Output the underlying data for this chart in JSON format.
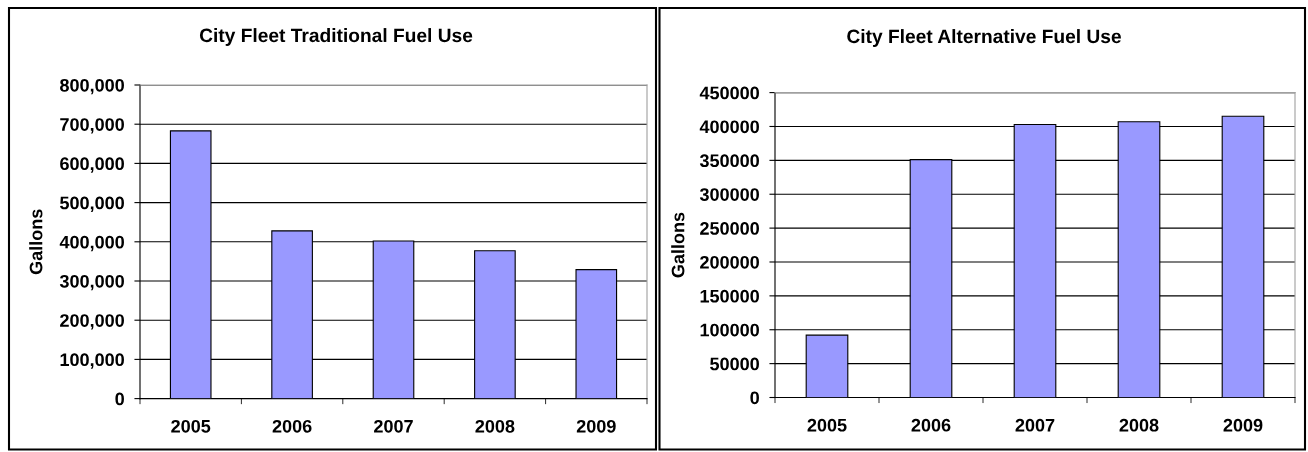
{
  "chart_data": [
    {
      "type": "bar",
      "title": "City Fleet Traditional Fuel Use",
      "ylabel": "Gallons",
      "categories": [
        "2005",
        "2006",
        "2007",
        "2008",
        "2009"
      ],
      "values": [
        683000,
        428000,
        402000,
        377000,
        329000
      ],
      "color": "#9999ff",
      "ylim": [
        0,
        800000
      ],
      "yticks": [
        0,
        {
          "value": 100000,
          "label": "100,000"
        },
        {
          "value": 200000,
          "label": "200,000"
        },
        {
          "value": 300000,
          "label": "300,000"
        },
        {
          "value": 400000,
          "label": "400,000"
        },
        {
          "value": 500000,
          "label": "500,000"
        },
        {
          "value": 600000,
          "label": "600,000"
        },
        {
          "value": 700000,
          "label": "700,000"
        },
        {
          "value": 800000,
          "label": "800,000"
        }
      ],
      "grid": "y"
    },
    {
      "type": "bar",
      "title": "City Fleet Alternative Fuel Use",
      "ylabel": "Gallons",
      "categories": [
        "2005",
        "2006",
        "2007",
        "2008",
        "2009"
      ],
      "values": [
        92000,
        351000,
        403000,
        407000,
        415000
      ],
      "color": "#9999ff",
      "ylim": [
        0,
        450000
      ],
      "yticks": [
        0,
        50000,
        100000,
        150000,
        200000,
        250000,
        300000,
        350000,
        400000,
        450000
      ],
      "grid": "y"
    }
  ]
}
